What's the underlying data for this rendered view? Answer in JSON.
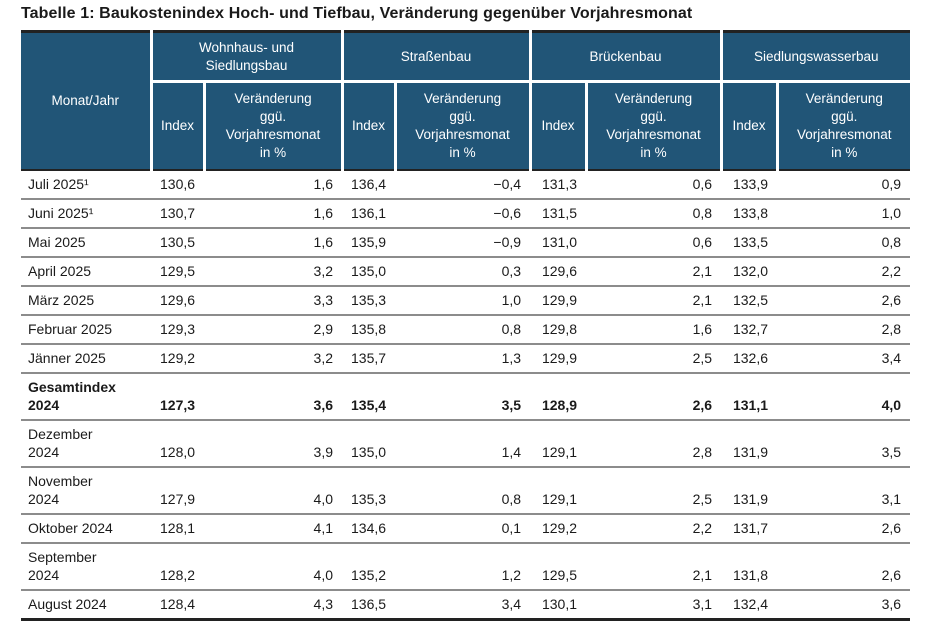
{
  "title": "Tabelle 1: Baukostenindex Hoch- und Tiefbau, Veränderung gegenüber Vorjahresmonat",
  "colors": {
    "header_bg": "#215577",
    "header_text": "#ffffff",
    "body_text": "#1a1a1a",
    "row_divider": "#8c8c8c",
    "strong_divider": "#222222"
  },
  "chart_data": {
    "type": "table",
    "title": "Tabelle 1: Baukostenindex Hoch- und Tiefbau, Veränderung gegenüber Vorjahresmonat",
    "corner_header": "Monat/Jahr",
    "group_headers": [
      "Wohnhaus- und\nSiedlungsbau",
      "Straßenbau",
      "Brückenbau",
      "Siedlungswasserbau"
    ],
    "sub_header_index": "Index",
    "sub_header_change": "Veränderung\nggü.\nVorjahresmonat\nin %",
    "columns_per_group": [
      "Index",
      "Veränderung ggü. Vorjahresmonat in %"
    ],
    "rows": [
      {
        "label": "Juli 2025¹",
        "bold": false,
        "values": [
          "130,6",
          "1,6",
          "136,4",
          "−0,4",
          "131,3",
          "0,6",
          "133,9",
          "0,9"
        ]
      },
      {
        "label": "Juni 2025¹",
        "bold": false,
        "values": [
          "130,7",
          "1,6",
          "136,1",
          "−0,6",
          "131,5",
          "0,8",
          "133,8",
          "1,0"
        ]
      },
      {
        "label": "Mai 2025",
        "bold": false,
        "values": [
          "130,5",
          "1,6",
          "135,9",
          "−0,9",
          "131,0",
          "0,6",
          "133,5",
          "0,8"
        ]
      },
      {
        "label": "April 2025",
        "bold": false,
        "values": [
          "129,5",
          "3,2",
          "135,0",
          "0,3",
          "129,6",
          "2,1",
          "132,0",
          "2,2"
        ]
      },
      {
        "label": "März 2025",
        "bold": false,
        "values": [
          "129,6",
          "3,3",
          "135,3",
          "1,0",
          "129,9",
          "2,1",
          "132,5",
          "2,6"
        ]
      },
      {
        "label": "Februar 2025",
        "bold": false,
        "values": [
          "129,3",
          "2,9",
          "135,8",
          "0,8",
          "129,8",
          "1,6",
          "132,7",
          "2,8"
        ]
      },
      {
        "label": "Jänner 2025",
        "bold": false,
        "values": [
          "129,2",
          "3,2",
          "135,7",
          "1,3",
          "129,9",
          "2,5",
          "132,6",
          "3,4"
        ]
      },
      {
        "label": "Gesamtindex\n2024",
        "bold": true,
        "values": [
          "127,3",
          "3,6",
          "135,4",
          "3,5",
          "128,9",
          "2,6",
          "131,1",
          "4,0"
        ]
      },
      {
        "label": "Dezember\n2024",
        "bold": false,
        "values": [
          "128,0",
          "3,9",
          "135,0",
          "1,4",
          "129,1",
          "2,8",
          "131,9",
          "3,5"
        ]
      },
      {
        "label": "November\n2024",
        "bold": false,
        "values": [
          "127,9",
          "4,0",
          "135,3",
          "0,8",
          "129,1",
          "2,5",
          "131,9",
          "3,1"
        ]
      },
      {
        "label": "Oktober 2024",
        "bold": false,
        "values": [
          "128,1",
          "4,1",
          "134,6",
          "0,1",
          "129,2",
          "2,2",
          "131,7",
          "2,6"
        ]
      },
      {
        "label": "September\n2024",
        "bold": false,
        "values": [
          "128,2",
          "4,0",
          "135,2",
          "1,2",
          "129,5",
          "2,1",
          "131,8",
          "2,6"
        ]
      },
      {
        "label": "August 2024",
        "bold": false,
        "values": [
          "128,4",
          "4,3",
          "136,5",
          "3,4",
          "130,1",
          "3,1",
          "132,4",
          "3,6"
        ]
      }
    ]
  }
}
